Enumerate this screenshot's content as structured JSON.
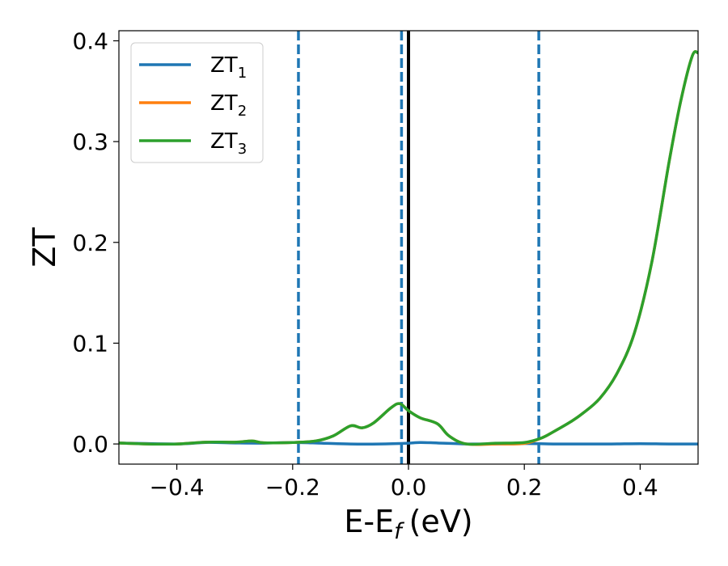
{
  "chart_data": {
    "type": "line",
    "xlabel": "E-E",
    "xlabel_sub": "f",
    "xlabel_unit": "(eV)",
    "ylabel": "ZT",
    "xlim": [
      -0.5,
      0.5
    ],
    "ylim": [
      -0.02,
      0.41
    ],
    "xticks": [
      -0.4,
      -0.2,
      0.0,
      0.2,
      0.4
    ],
    "xtick_labels": [
      "−0.4",
      "−0.2",
      "0.0",
      "0.2",
      "0.4"
    ],
    "yticks": [
      0.0,
      0.1,
      0.2,
      0.3,
      0.4
    ],
    "ytick_labels": [
      "0.0",
      "0.1",
      "0.2",
      "0.3",
      "0.4"
    ],
    "grid": false,
    "legend_position": "top-left",
    "vertical_lines": [
      {
        "x": -0.19,
        "style": "dashed",
        "color": "#1f77b4"
      },
      {
        "x": -0.012,
        "style": "dashed",
        "color": "#1f77b4"
      },
      {
        "x": 0.0,
        "style": "solid",
        "color": "#000000"
      },
      {
        "x": 0.225,
        "style": "dashed",
        "color": "#1f77b4"
      }
    ],
    "series": [
      {
        "name": "ZT",
        "name_sub": "1",
        "color": "#1f77b4",
        "x": [
          -0.5,
          -0.4,
          -0.35,
          -0.3,
          -0.25,
          -0.2,
          -0.15,
          -0.1,
          -0.05,
          0.0,
          0.02,
          0.05,
          0.1,
          0.15,
          0.2,
          0.25,
          0.3,
          0.35,
          0.4,
          0.45,
          0.5
        ],
        "y": [
          0.001,
          0.0,
          0.0015,
          0.001,
          0.0008,
          0.0015,
          0.0008,
          0.0,
          0.0,
          0.0008,
          0.0015,
          0.001,
          0.0,
          0.0,
          0.0005,
          0.0,
          0.0,
          0.0,
          0.0003,
          0.0,
          0.0
        ]
      },
      {
        "name": "ZT",
        "name_sub": "2",
        "color": "#ff7f0e",
        "x": [
          -0.5,
          -0.45,
          -0.4,
          -0.35,
          -0.3,
          -0.27,
          -0.25,
          -0.2,
          -0.16,
          -0.13,
          -0.1,
          -0.08,
          -0.06,
          -0.03,
          -0.015,
          0.0,
          0.02,
          0.05,
          0.07,
          0.1,
          0.15,
          0.2,
          0.23,
          0.25,
          0.28,
          0.3,
          0.33,
          0.36,
          0.39,
          0.42,
          0.45,
          0.47,
          0.49,
          0.5
        ],
        "y": [
          0.001,
          0.0,
          0.0,
          0.0018,
          0.0018,
          0.003,
          0.0012,
          0.0015,
          0.003,
          0.008,
          0.018,
          0.016,
          0.021,
          0.036,
          0.04,
          0.033,
          0.026,
          0.02,
          0.008,
          0.0,
          0.0,
          0.0005,
          0.006,
          0.012,
          0.022,
          0.03,
          0.045,
          0.07,
          0.11,
          0.18,
          0.28,
          0.34,
          0.385,
          0.388
        ]
      },
      {
        "name": "ZT",
        "name_sub": "3",
        "color": "#2ca02c",
        "x": [
          -0.5,
          -0.45,
          -0.4,
          -0.35,
          -0.3,
          -0.27,
          -0.25,
          -0.2,
          -0.16,
          -0.13,
          -0.1,
          -0.08,
          -0.06,
          -0.03,
          -0.015,
          0.0,
          0.02,
          0.05,
          0.07,
          0.1,
          0.15,
          0.2,
          0.23,
          0.25,
          0.28,
          0.3,
          0.33,
          0.36,
          0.39,
          0.42,
          0.45,
          0.47,
          0.49,
          0.5
        ],
        "y": [
          0.001,
          0.0,
          0.0,
          0.0018,
          0.0018,
          0.003,
          0.0012,
          0.0015,
          0.003,
          0.008,
          0.018,
          0.016,
          0.021,
          0.036,
          0.04,
          0.033,
          0.026,
          0.02,
          0.008,
          0.0,
          0.0008,
          0.0015,
          0.006,
          0.012,
          0.022,
          0.03,
          0.045,
          0.07,
          0.11,
          0.18,
          0.28,
          0.34,
          0.385,
          0.388
        ]
      }
    ]
  }
}
